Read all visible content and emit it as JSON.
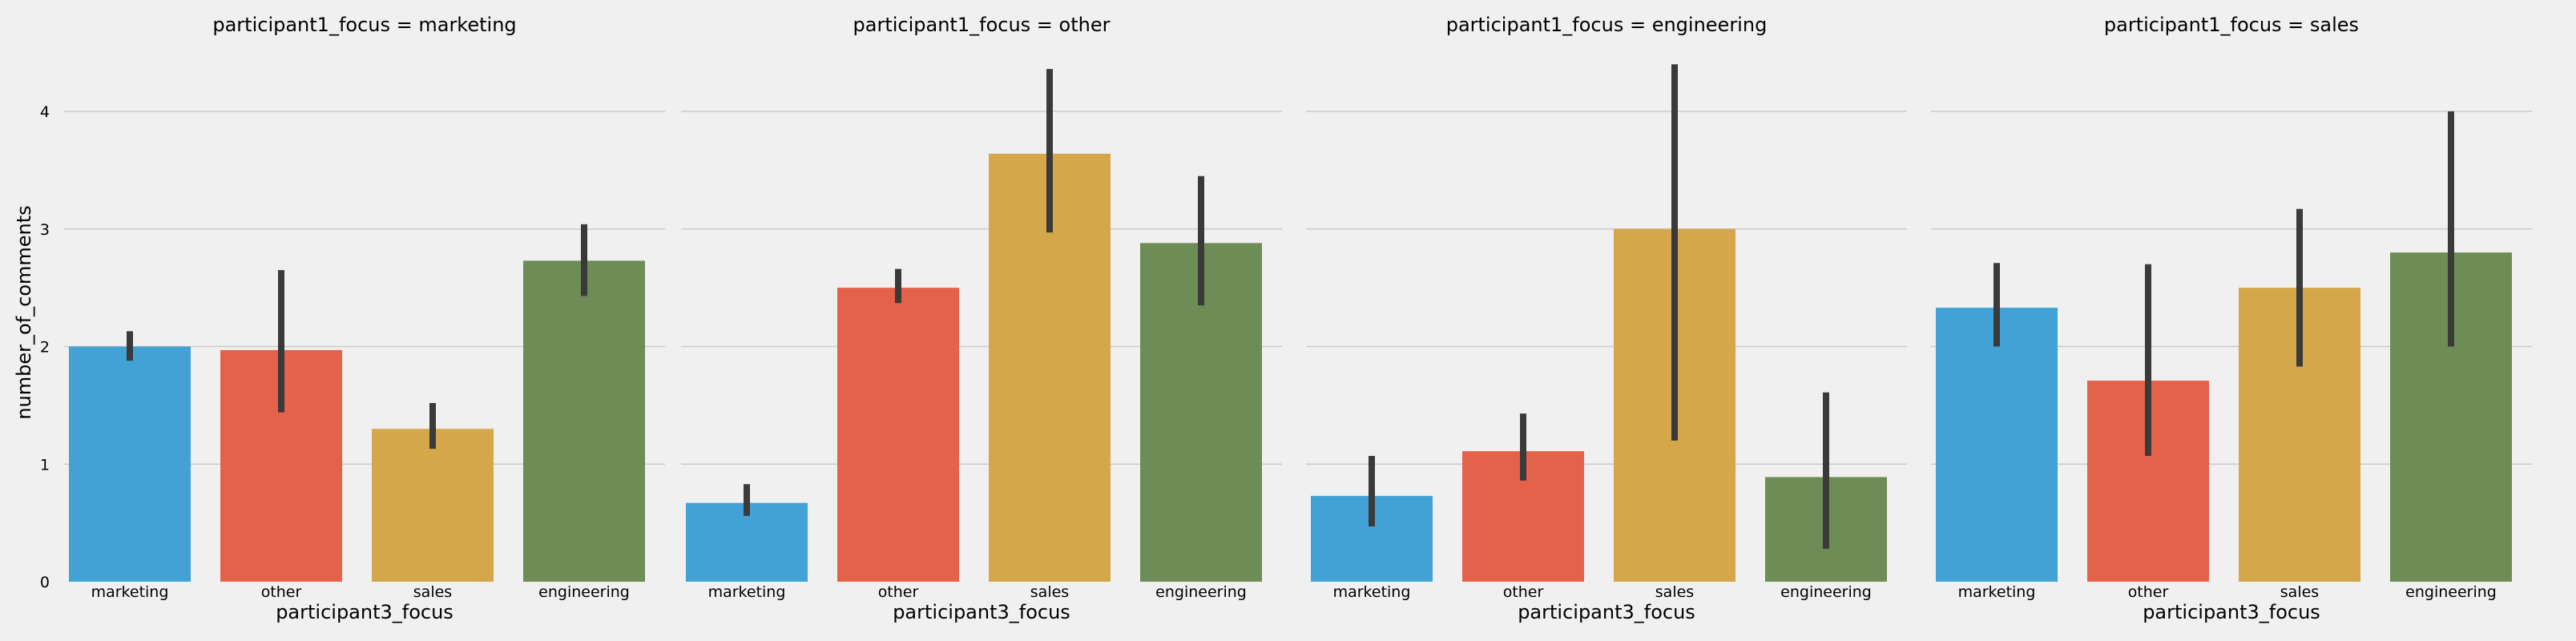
{
  "figure": {
    "ylabel": "number_of_comments",
    "xlabel": "participant3_focus"
  },
  "theme": {
    "background": "#f0f0f0",
    "grid": "#cbcbcb",
    "errorbar": "#3a3a3a",
    "bar_colors": [
      "#42a1d5",
      "#e5624a",
      "#d4a84a",
      "#6e8c56"
    ]
  },
  "chart_data": [
    {
      "type": "bar",
      "title": "participant1_focus = marketing",
      "xlabel": "participant3_focus",
      "ylabel": "number_of_comments",
      "categories": [
        "marketing",
        "other",
        "sales",
        "engineering"
      ],
      "values": [
        2.0,
        1.97,
        1.3,
        2.73
      ],
      "ci_low": [
        1.88,
        1.44,
        1.13,
        2.43
      ],
      "ci_high": [
        2.13,
        2.65,
        1.52,
        3.04
      ],
      "ylim": [
        0,
        4.5
      ],
      "yticks": [
        0,
        1,
        2,
        3,
        4
      ],
      "grid": "horizontal"
    },
    {
      "type": "bar",
      "title": "participant1_focus = other",
      "xlabel": "participant3_focus",
      "ylabel": "",
      "categories": [
        "marketing",
        "other",
        "sales",
        "engineering"
      ],
      "values": [
        0.67,
        2.5,
        3.64,
        2.88
      ],
      "ci_low": [
        0.56,
        2.37,
        2.97,
        2.35
      ],
      "ci_high": [
        0.83,
        2.66,
        4.36,
        3.45
      ],
      "ylim": [
        0,
        4.5
      ],
      "yticks": [
        0,
        1,
        2,
        3,
        4
      ],
      "grid": "horizontal"
    },
    {
      "type": "bar",
      "title": "participant1_focus = engineering",
      "xlabel": "participant3_focus",
      "ylabel": "",
      "categories": [
        "marketing",
        "other",
        "sales",
        "engineering"
      ],
      "values": [
        0.73,
        1.11,
        3.0,
        0.89
      ],
      "ci_low": [
        0.47,
        0.86,
        1.2,
        0.28
      ],
      "ci_high": [
        1.07,
        1.43,
        4.4,
        1.61
      ],
      "ylim": [
        0,
        4.5
      ],
      "yticks": [
        0,
        1,
        2,
        3,
        4
      ],
      "grid": "horizontal"
    },
    {
      "type": "bar",
      "title": "participant1_focus = sales",
      "xlabel": "participant3_focus",
      "ylabel": "",
      "categories": [
        "marketing",
        "other",
        "sales",
        "engineering"
      ],
      "values": [
        2.33,
        1.71,
        2.5,
        2.8
      ],
      "ci_low": [
        2.0,
        1.07,
        1.83,
        2.0
      ],
      "ci_high": [
        2.71,
        2.7,
        3.17,
        4.0
      ],
      "ylim": [
        0,
        4.5
      ],
      "yticks": [
        0,
        1,
        2,
        3,
        4
      ],
      "grid": "horizontal"
    }
  ]
}
